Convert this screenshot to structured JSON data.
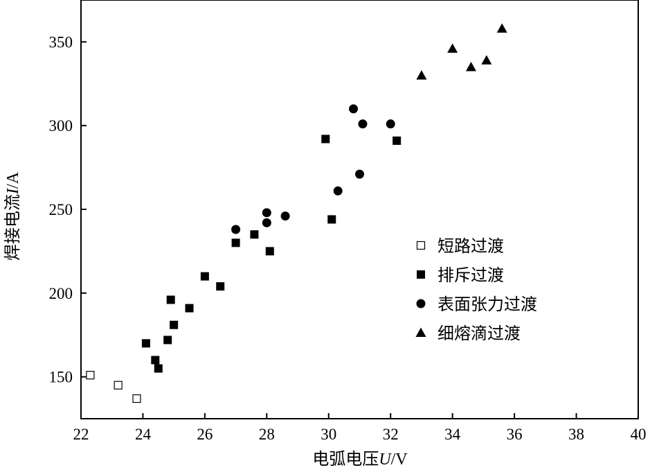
{
  "chart_data": {
    "type": "scatter",
    "xlabel_parts": [
      "电弧电压",
      "U",
      "/V"
    ],
    "ylabel_parts": [
      "焊接电流",
      "I",
      "/A"
    ],
    "xlim": [
      22,
      40
    ],
    "ylim": [
      125,
      375
    ],
    "xticks": [
      22,
      24,
      26,
      28,
      30,
      32,
      34,
      36,
      38,
      40
    ],
    "yticks": [
      150,
      200,
      250,
      300,
      350
    ],
    "grid": false,
    "legend_position": "center-right",
    "series": [
      {
        "name": "短路过渡",
        "marker": "square-open",
        "color": "#000000",
        "points": [
          [
            22.3,
            151
          ],
          [
            23.2,
            145
          ],
          [
            23.8,
            137
          ]
        ]
      },
      {
        "name": "排斥过渡",
        "marker": "square-filled",
        "color": "#000000",
        "points": [
          [
            24.1,
            170
          ],
          [
            24.4,
            160
          ],
          [
            24.5,
            155
          ],
          [
            24.8,
            172
          ],
          [
            24.9,
            196
          ],
          [
            25.0,
            181
          ],
          [
            25.5,
            191
          ],
          [
            26.0,
            210
          ],
          [
            26.5,
            204
          ],
          [
            27.0,
            230
          ],
          [
            27.6,
            235
          ],
          [
            28.1,
            225
          ],
          [
            29.9,
            292
          ],
          [
            30.1,
            244
          ],
          [
            32.2,
            291
          ]
        ]
      },
      {
        "name": "表面张力过渡",
        "marker": "circle-filled",
        "color": "#000000",
        "points": [
          [
            27.0,
            238
          ],
          [
            28.0,
            248
          ],
          [
            28.0,
            242
          ],
          [
            28.6,
            246
          ],
          [
            30.3,
            261
          ],
          [
            30.8,
            310
          ],
          [
            31.0,
            271
          ],
          [
            31.1,
            301
          ],
          [
            32.0,
            301
          ]
        ]
      },
      {
        "name": "细熔滴过渡",
        "marker": "triangle-filled",
        "color": "#000000",
        "points": [
          [
            33.0,
            330
          ],
          [
            34.0,
            346
          ],
          [
            34.6,
            335
          ],
          [
            35.1,
            339
          ],
          [
            35.6,
            358
          ]
        ]
      }
    ]
  }
}
